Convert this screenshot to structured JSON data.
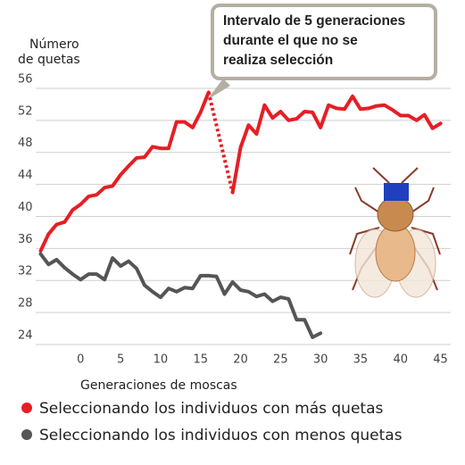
{
  "chart_data": {
    "type": "line",
    "y_label": [
      "Número",
      "de quetas"
    ],
    "x_label": "Generaciones de moscas",
    "annotation": [
      "Intervalo de 5 generaciones",
      "durante el que no se",
      "realiza selección"
    ],
    "x": [
      -5,
      -4,
      -3,
      -2,
      -1,
      0,
      1,
      2,
      3,
      4,
      5,
      6,
      7,
      8,
      9,
      10,
      11,
      12,
      13,
      14,
      15,
      16,
      17,
      18,
      19,
      20,
      21,
      22,
      23,
      24,
      25,
      26,
      27,
      28,
      29,
      30,
      31,
      32,
      33,
      34,
      35,
      36,
      37,
      38,
      39,
      40,
      41,
      42,
      43,
      44,
      45
    ],
    "series": [
      {
        "name": "Seleccionando los individuos con más quetas",
        "color": "#e61e25",
        "values": [
          35.7,
          37.8,
          39,
          39.3,
          40.8,
          41.5,
          42.5,
          42.7,
          43.6,
          43.8,
          45.2,
          46.3,
          47.3,
          47.4,
          48.7,
          48.5,
          48.5,
          51.8,
          51.8,
          51.1,
          53,
          55.5,
          null,
          null,
          43,
          48.6,
          51.4,
          50.3,
          53.9,
          52.3,
          53.1,
          52,
          52.2,
          53.1,
          53,
          51.1,
          53.9,
          53.5,
          53.4,
          55,
          53.4,
          53.5,
          53.8,
          53.9,
          53.3,
          52.6,
          52.6,
          52,
          52.7,
          51,
          51.6
        ]
      },
      {
        "name": "Seleccionando los individuos con menos quetas",
        "color": "#555555",
        "values": [
          35.3,
          34,
          34.6,
          33.6,
          32.8,
          32.1,
          32.8,
          32.8,
          32.1,
          34.8,
          33.8,
          34.4,
          33.5,
          31.4,
          30.6,
          29.9,
          31,
          30.6,
          31.1,
          31,
          32.6,
          32.6,
          32.5,
          30.3,
          31.8,
          30.8,
          30.6,
          30,
          30.3,
          29.4,
          29.9,
          29.7,
          27.1,
          27.1,
          24.9,
          25.4,
          null,
          null,
          null,
          null,
          null,
          null,
          null,
          null,
          null,
          null,
          null,
          null,
          null,
          null,
          null
        ]
      }
    ],
    "xlim": [
      -5.5,
      46.5
    ],
    "xticks": [
      0,
      5,
      10,
      15,
      20,
      25,
      30,
      35,
      40,
      45
    ],
    "ylim": [
      24,
      57
    ],
    "yticks": [
      24,
      28,
      32,
      36,
      40,
      44,
      48,
      52,
      56
    ],
    "grid": true
  }
}
